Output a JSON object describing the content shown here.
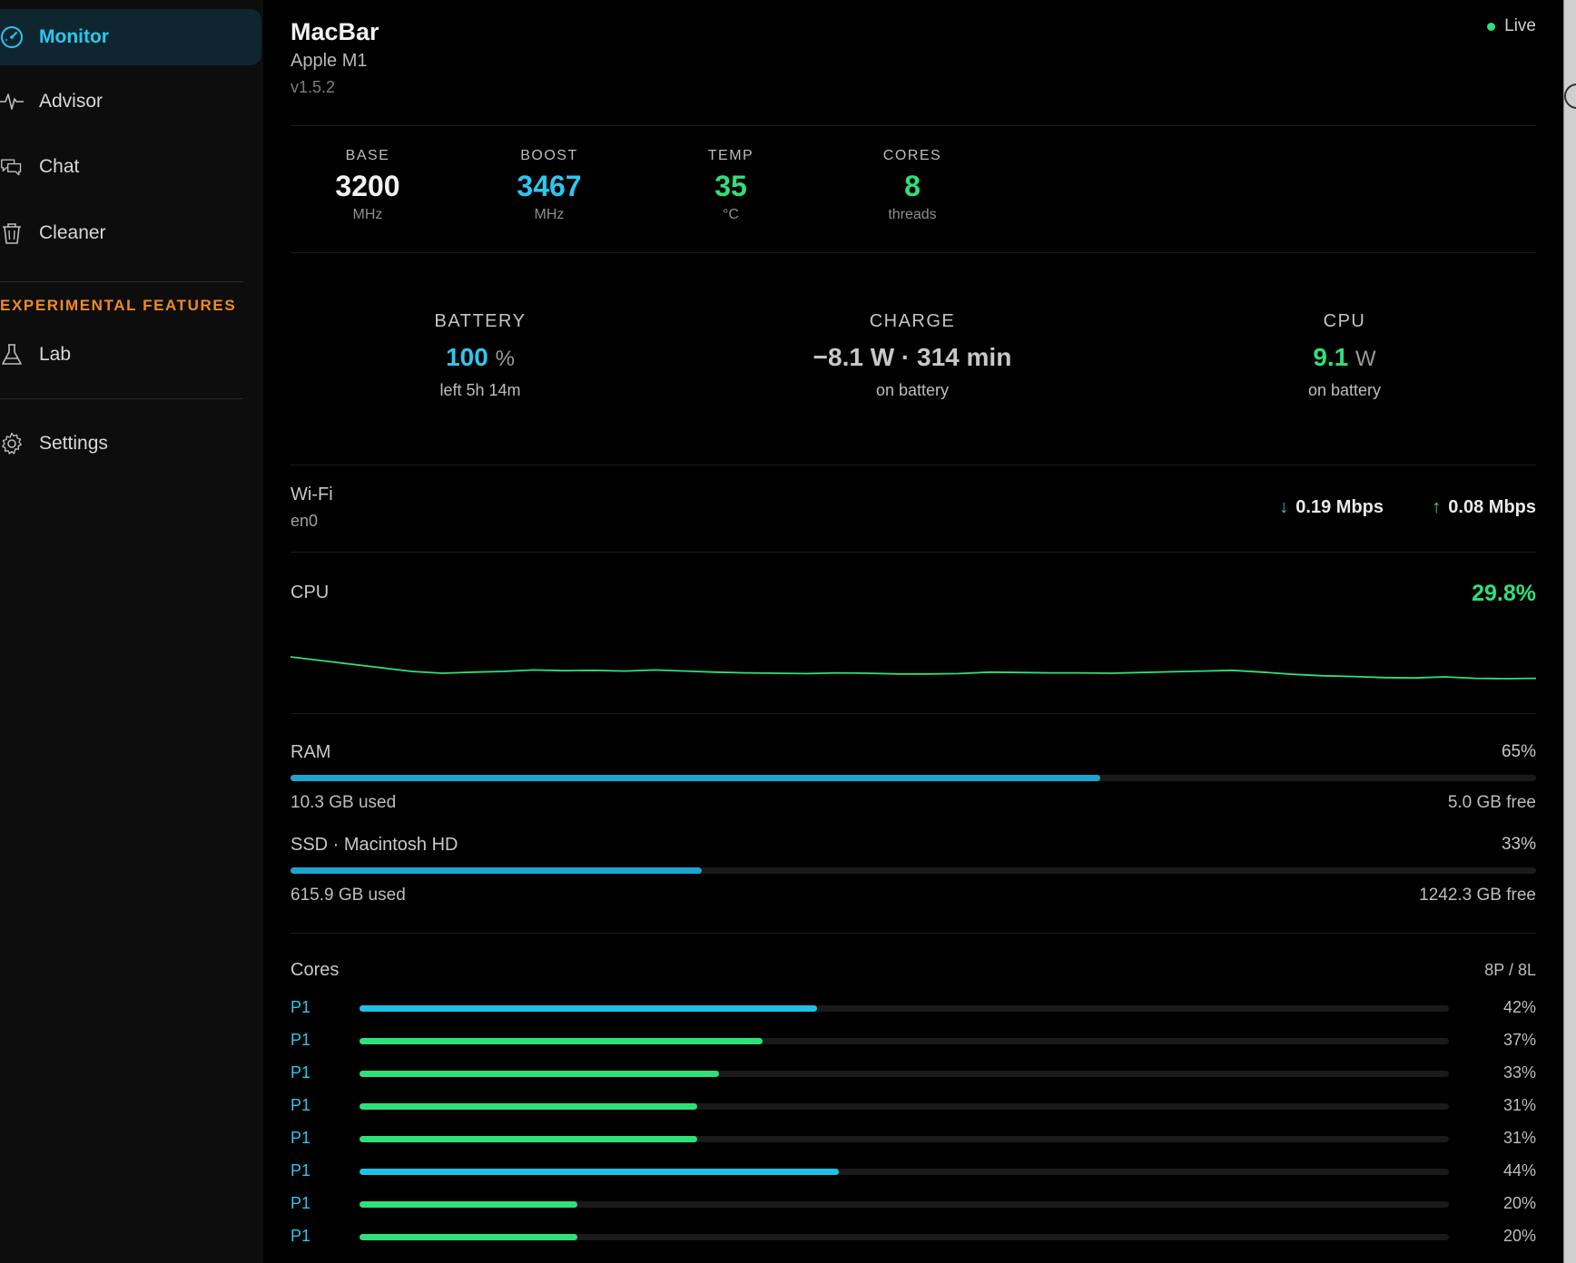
{
  "sidebar": {
    "items": [
      {
        "label": "Monitor",
        "icon": "gauge-icon",
        "active": true
      },
      {
        "label": "Advisor",
        "icon": "pulse-icon",
        "active": false
      },
      {
        "label": "Chat",
        "icon": "chat-icon",
        "active": false
      },
      {
        "label": "Cleaner",
        "icon": "trash-icon",
        "active": false
      }
    ],
    "section_title": "EXPERIMENTAL FEATURES",
    "lab": {
      "label": "Lab",
      "icon": "flask-icon"
    },
    "settings": {
      "label": "Settings",
      "icon": "gear-icon"
    }
  },
  "header": {
    "title": "MacBar",
    "chip": "Apple M1",
    "version": "v1.5.2",
    "status": "Live"
  },
  "specs": [
    {
      "key": "BASE",
      "value": "3200",
      "unit": "MHz",
      "color": "#f2f2f2"
    },
    {
      "key": "BOOST",
      "value": "3467",
      "unit": "MHz",
      "color": "#2ec6ee"
    },
    {
      "key": "TEMP",
      "value": "35",
      "unit": "°C",
      "color": "#2fe07a"
    },
    {
      "key": "CORES",
      "value": "8",
      "unit": "threads",
      "color": "#2fe07a"
    }
  ],
  "power": {
    "battery": {
      "key": "BATTERY",
      "value": "100",
      "unit": "%",
      "sub": "left 5h 14m",
      "color": "#2ec6ee"
    },
    "charge": {
      "key": "CHARGE",
      "value": "−8.1 W · 314 min",
      "sub": "on battery",
      "color": "#c8c8c8"
    },
    "cpu": {
      "key": "CPU",
      "value": "9.1",
      "unit": "W",
      "sub": "on battery",
      "color": "#2fe07a"
    }
  },
  "network": {
    "name": "Wi-Fi",
    "interface": "en0",
    "download": "0.19 Mbps",
    "upload": "0.08 Mbps"
  },
  "cpu": {
    "label": "CPU",
    "value": "29.8%",
    "history": [
      34,
      33,
      32,
      31,
      30,
      29.5,
      29.8,
      30,
      30.4,
      30.2,
      30.3,
      30.1,
      30.4,
      30.1,
      29.8,
      29.6,
      29.5,
      29.4,
      29.6,
      29.5,
      29.3,
      29.3,
      29.4,
      29.8,
      29.7,
      29.6,
      29.6,
      29.5,
      29.7,
      29.9,
      30.1,
      30.3,
      29.8,
      29.2,
      28.8,
      28.6,
      28.3,
      28.2,
      28.5,
      28.1,
      28,
      28.1
    ]
  },
  "ram": {
    "label": "RAM",
    "percent_text": "65%",
    "fraction": 0.65,
    "used": "10.3 GB used",
    "free": "5.0 GB free"
  },
  "ssd": {
    "label": "SSD · Macintosh HD",
    "percent_text": "33%",
    "fraction": 0.33,
    "used": "615.9 GB used",
    "free": "1242.3 GB free"
  },
  "cores": {
    "title": "Cores",
    "count": "8P / 8L",
    "list": [
      {
        "label": "P1",
        "pct": "42%",
        "fraction": 0.42,
        "color": "#1ec0e6"
      },
      {
        "label": "P1",
        "pct": "37%",
        "fraction": 0.37,
        "color": "#2fe07a"
      },
      {
        "label": "P1",
        "pct": "33%",
        "fraction": 0.33,
        "color": "#2fe07a"
      },
      {
        "label": "P1",
        "pct": "31%",
        "fraction": 0.31,
        "color": "#2fe07a"
      },
      {
        "label": "P1",
        "pct": "31%",
        "fraction": 0.31,
        "color": "#2fe07a"
      },
      {
        "label": "P1",
        "pct": "44%",
        "fraction": 0.44,
        "color": "#1ec0e6"
      },
      {
        "label": "P1",
        "pct": "20%",
        "fraction": 0.2,
        "color": "#2fe07a"
      },
      {
        "label": "P1",
        "pct": "20%",
        "fraction": 0.2,
        "color": "#2fe07a"
      }
    ]
  }
}
